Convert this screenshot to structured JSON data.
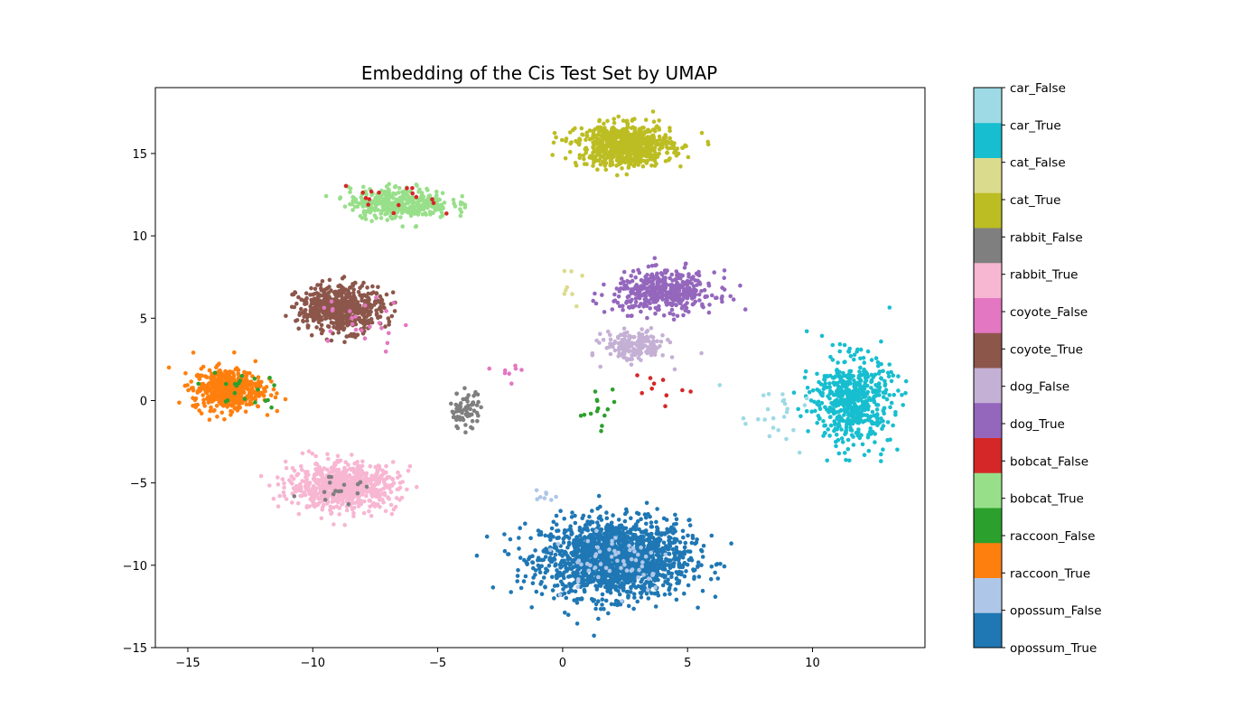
{
  "chart_data": {
    "type": "scatter",
    "title": "Embedding of the Cis Test Set by UMAP",
    "xlabel": "",
    "ylabel": "",
    "xlim": [
      -16.3,
      14.5
    ],
    "ylim": [
      -15,
      19
    ],
    "xticks": [
      -15,
      -10,
      -5,
      0,
      5,
      10
    ],
    "yticks": [
      -15,
      -10,
      -5,
      0,
      5,
      10,
      15
    ],
    "legend": "colorbar-right",
    "grid": false,
    "categories": [
      {
        "label": "opossum_True",
        "color": "#1f77b4"
      },
      {
        "label": "opossum_False",
        "color": "#aec7e8"
      },
      {
        "label": "raccoon_True",
        "color": "#ff7f0e"
      },
      {
        "label": "raccoon_False",
        "color": "#2ca02c"
      },
      {
        "label": "bobcat_True",
        "color": "#98df8a"
      },
      {
        "label": "bobcat_False",
        "color": "#d62728"
      },
      {
        "label": "dog_True",
        "color": "#9467bd"
      },
      {
        "label": "dog_False",
        "color": "#c5b0d5"
      },
      {
        "label": "coyote_True",
        "color": "#8c564b"
      },
      {
        "label": "coyote_False",
        "color": "#e377c2"
      },
      {
        "label": "rabbit_True",
        "color": "#f7b6d2"
      },
      {
        "label": "rabbit_False",
        "color": "#7f7f7f"
      },
      {
        "label": "cat_True",
        "color": "#bcbd22"
      },
      {
        "label": "cat_False",
        "color": "#dbdb8d"
      },
      {
        "label": "car_True",
        "color": "#17becf"
      },
      {
        "label": "car_False",
        "color": "#9edae5"
      }
    ],
    "clusters": [
      {
        "category": "opossum_True",
        "cx": 2.1,
        "cy": -9.6,
        "sx": 1.9,
        "sy": 1.5,
        "n": 1700
      },
      {
        "category": "opossum_False",
        "cx": 2.0,
        "cy": -9.6,
        "sx": 1.6,
        "sy": 1.3,
        "n": 60
      },
      {
        "category": "opossum_False",
        "cx": -0.6,
        "cy": -5.9,
        "sx": 0.3,
        "sy": 0.3,
        "n": 8
      },
      {
        "category": "raccoon_True",
        "cx": -13.4,
        "cy": 0.7,
        "sx": 0.9,
        "sy": 0.8,
        "n": 520
      },
      {
        "category": "raccoon_False",
        "cx": -13.0,
        "cy": 0.6,
        "sx": 1.1,
        "sy": 0.8,
        "n": 20
      },
      {
        "category": "raccoon_False",
        "cx": 1.5,
        "cy": -1.0,
        "sx": 0.6,
        "sy": 1.1,
        "n": 14
      },
      {
        "category": "bobcat_True",
        "cx": -6.5,
        "cy": 12.0,
        "sx": 1.3,
        "sy": 0.6,
        "n": 380
      },
      {
        "category": "bobcat_False",
        "cx": -6.8,
        "cy": 12.0,
        "sx": 1.2,
        "sy": 0.6,
        "n": 16
      },
      {
        "category": "bobcat_False",
        "cx": 4.0,
        "cy": 0.6,
        "sx": 0.9,
        "sy": 1.2,
        "n": 10
      },
      {
        "category": "dog_True",
        "cx": 4.1,
        "cy": 6.6,
        "sx": 1.3,
        "sy": 0.8,
        "n": 440
      },
      {
        "category": "dog_False",
        "cx": 2.9,
        "cy": 3.3,
        "sx": 0.8,
        "sy": 0.6,
        "n": 180
      },
      {
        "category": "coyote_True",
        "cx": -8.9,
        "cy": 5.6,
        "sx": 1.1,
        "sy": 0.9,
        "n": 560
      },
      {
        "category": "coyote_False",
        "cx": -8.2,
        "cy": 4.6,
        "sx": 1.2,
        "sy": 1.1,
        "n": 24
      },
      {
        "category": "coyote_False",
        "cx": -2.0,
        "cy": 1.8,
        "sx": 0.5,
        "sy": 0.6,
        "n": 8
      },
      {
        "category": "rabbit_True",
        "cx": -8.8,
        "cy": -5.2,
        "sx": 1.4,
        "sy": 0.9,
        "n": 700
      },
      {
        "category": "rabbit_False",
        "cx": -3.9,
        "cy": -0.6,
        "sx": 0.4,
        "sy": 0.7,
        "n": 70
      },
      {
        "category": "rabbit_False",
        "cx": -9.0,
        "cy": -5.6,
        "sx": 1.0,
        "sy": 0.6,
        "n": 16
      },
      {
        "category": "cat_True",
        "cx": 2.5,
        "cy": 15.5,
        "sx": 1.2,
        "sy": 0.8,
        "n": 780
      },
      {
        "category": "cat_False",
        "cx": 0.0,
        "cy": 7.0,
        "sx": 0.5,
        "sy": 1.3,
        "n": 8
      },
      {
        "category": "car_True",
        "cx": 11.6,
        "cy": 0.0,
        "sx": 1.0,
        "sy": 1.7,
        "n": 560
      },
      {
        "category": "car_False",
        "cx": 8.4,
        "cy": -1.2,
        "sx": 1.3,
        "sy": 1.2,
        "n": 24
      }
    ]
  }
}
